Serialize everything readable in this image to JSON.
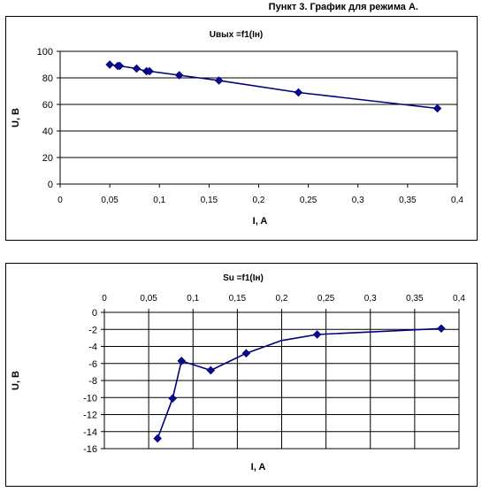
{
  "page": {
    "title": "Пункт 3. График для режима А."
  },
  "colors": {
    "series": "#00007f",
    "marker": "#0a0a8c",
    "grid": "#000000"
  },
  "chart_data": [
    {
      "type": "line",
      "title": "Uвых =f1(Iн)",
      "xlabel": "I, A",
      "ylabel": "U, В",
      "xlim": [
        0,
        0.4
      ],
      "ylim": [
        0,
        100
      ],
      "xticks": [
        0,
        0.05,
        0.1,
        0.15,
        0.2,
        0.25,
        0.3,
        0.35,
        0.4
      ],
      "yticks": [
        0,
        20,
        40,
        60,
        80,
        100
      ],
      "x_tick_labels": [
        "0",
        "0,05",
        "0,1",
        "0,15",
        "0,2",
        "0,25",
        "0,3",
        "0,35",
        "0,4"
      ],
      "y_tick_labels": [
        "0",
        "20",
        "40",
        "60",
        "80",
        "100"
      ],
      "x_axis_position": "bottom",
      "grid": {
        "horizontal": true,
        "vertical": false
      },
      "legend": "none",
      "series": [
        {
          "x": [
            0.05,
            0.058,
            0.06,
            0.077,
            0.087,
            0.09,
            0.12,
            0.16,
            0.24,
            0.38
          ],
          "y": [
            90,
            89,
            89,
            87,
            85,
            85,
            82,
            78,
            69,
            57
          ]
        }
      ]
    },
    {
      "type": "line",
      "title": "Su =f1(Iн)",
      "xlabel": "I, A",
      "ylabel": "U, В",
      "xlim": [
        0,
        0.4
      ],
      "ylim": [
        -16,
        0
      ],
      "xticks": [
        0,
        0.05,
        0.1,
        0.15,
        0.2,
        0.25,
        0.3,
        0.35,
        0.4
      ],
      "yticks": [
        -16,
        -14,
        -12,
        -10,
        -8,
        -6,
        -4,
        -2,
        0
      ],
      "x_tick_labels": [
        "0",
        "0,05",
        "0,1",
        "0,15",
        "0,2",
        "0,25",
        "0,3",
        "0,35",
        "0,4"
      ],
      "y_tick_labels": [
        "-16",
        "-14",
        "-12",
        "-10",
        "-8",
        "-6",
        "-4",
        "-2",
        "0"
      ],
      "x_axis_position": "top",
      "grid": {
        "horizontal": true,
        "vertical": true
      },
      "legend": "none",
      "series": [
        {
          "x": [
            0.06,
            0.077,
            0.087,
            0.12,
            0.16,
            0.2,
            0.24,
            0.38
          ],
          "y": [
            -14.8,
            -10.1,
            -5.7,
            -6.8,
            -4.8,
            -3.3,
            -2.6,
            -1.9
          ],
          "markers": [
            true,
            true,
            true,
            true,
            true,
            false,
            true,
            true
          ]
        }
      ]
    }
  ]
}
